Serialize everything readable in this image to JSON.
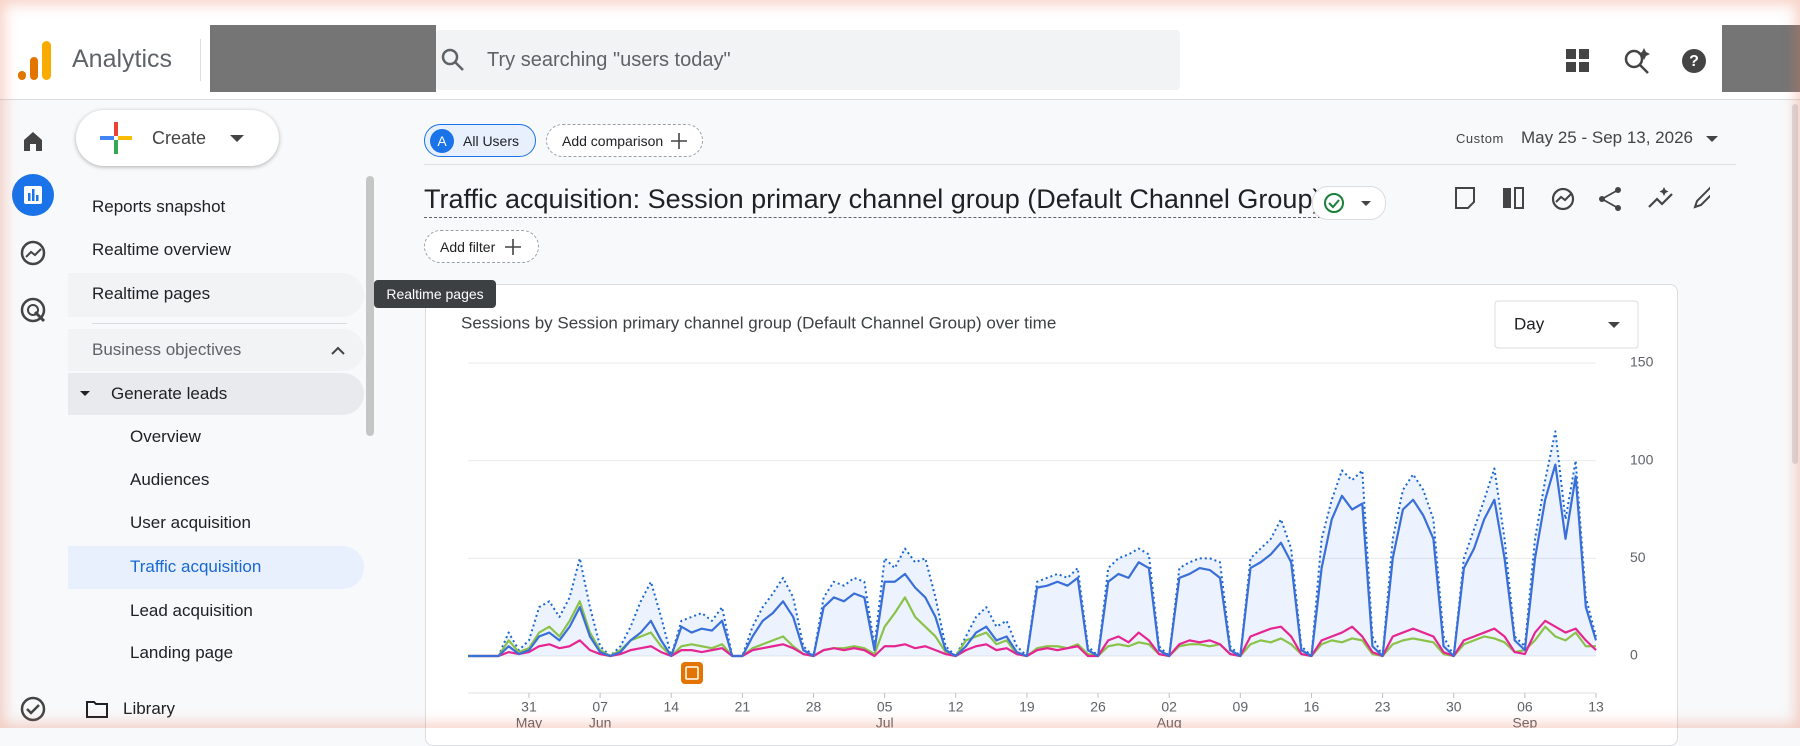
{
  "header": {
    "product": "Analytics",
    "search_placeholder": "Try searching \"users today\""
  },
  "nav": {
    "create": "Create",
    "items": [
      "Reports snapshot",
      "Realtime overview",
      "Realtime pages"
    ],
    "section": "Business objectives",
    "group": "Generate leads",
    "subitems": [
      "Overview",
      "Audiences",
      "User acquisition",
      "Traffic acquisition",
      "Lead acquisition",
      "Landing page"
    ],
    "library": "Library",
    "tooltip": "Realtime pages"
  },
  "toolbar": {
    "segment_letter": "A",
    "segment": "All Users",
    "add_comparison": "Add comparison",
    "date_label": "Custom",
    "date_range": "May 25 - Sep 13, 2026",
    "page_title": "Traffic acquisition: Session primary channel group (Default Channel Group)",
    "add_filter": "Add filter"
  },
  "chart_data": {
    "type": "line",
    "title": "Sessions by Session primary channel group (Default Channel Group) over time",
    "granularity": "Day",
    "ylim": [
      0,
      150
    ],
    "yticks": [
      0,
      50,
      100,
      150
    ],
    "grid": true,
    "xticks": [
      {
        "value": 6,
        "label": "31",
        "sublabel": "May"
      },
      {
        "value": 13,
        "label": "07",
        "sublabel": "Jun"
      },
      {
        "value": 20,
        "label": "14"
      },
      {
        "value": 27,
        "label": "21"
      },
      {
        "value": 34,
        "label": "28"
      },
      {
        "value": 41,
        "label": "05",
        "sublabel": "Jul"
      },
      {
        "value": 48,
        "label": "12"
      },
      {
        "value": 55,
        "label": "19"
      },
      {
        "value": 62,
        "label": "26"
      },
      {
        "value": 69,
        "label": "02",
        "sublabel": "Aug"
      },
      {
        "value": 76,
        "label": "09"
      },
      {
        "value": 83,
        "label": "16"
      },
      {
        "value": 90,
        "label": "23"
      },
      {
        "value": 97,
        "label": "30"
      },
      {
        "value": 104,
        "label": "06",
        "sublabel": "Sep"
      },
      {
        "value": 111,
        "label": "13"
      }
    ],
    "series": [
      {
        "color": "#1967d2",
        "style": "dotted",
        "area": true,
        "values": [
          0,
          0,
          0,
          0,
          12,
          3,
          8,
          25,
          28,
          20,
          30,
          50,
          25,
          5,
          0,
          5,
          15,
          28,
          38,
          20,
          0,
          18,
          20,
          22,
          18,
          25,
          0,
          0,
          15,
          25,
          32,
          40,
          30,
          5,
          0,
          30,
          38,
          36,
          40,
          38,
          5,
          50,
          45,
          55,
          48,
          50,
          30,
          5,
          0,
          10,
          20,
          25,
          15,
          18,
          5,
          0,
          38,
          40,
          42,
          40,
          45,
          5,
          0,
          45,
          50,
          52,
          55,
          52,
          5,
          0,
          45,
          48,
          50,
          50,
          48,
          5,
          0,
          50,
          55,
          60,
          70,
          55,
          5,
          0,
          60,
          80,
          95,
          90,
          95,
          10,
          0,
          60,
          85,
          93,
          85,
          70,
          10,
          0,
          50,
          65,
          80,
          96,
          60,
          10,
          5,
          60,
          90,
          115,
          70,
          100,
          30,
          10
        ]
      },
      {
        "color": "#8bc34a",
        "style": "solid",
        "values": [
          0,
          0,
          0,
          0,
          8,
          2,
          4,
          12,
          15,
          10,
          18,
          28,
          12,
          3,
          0,
          3,
          8,
          10,
          12,
          5,
          0,
          5,
          6,
          5,
          4,
          6,
          0,
          0,
          4,
          6,
          8,
          10,
          5,
          1,
          0,
          3,
          4,
          4,
          5,
          4,
          1,
          15,
          22,
          30,
          20,
          15,
          10,
          2,
          0,
          8,
          10,
          12,
          6,
          8,
          1,
          0,
          4,
          5,
          5,
          4,
          6,
          1,
          0,
          5,
          6,
          5,
          7,
          6,
          1,
          0,
          5,
          6,
          6,
          5,
          6,
          1,
          0,
          6,
          8,
          7,
          9,
          6,
          1,
          0,
          6,
          8,
          7,
          9,
          8,
          1,
          0,
          6,
          8,
          9,
          8,
          7,
          1,
          0,
          6,
          8,
          10,
          9,
          7,
          2,
          3,
          8,
          15,
          10,
          8,
          12,
          5,
          5
        ]
      },
      {
        "color": "#e52592",
        "style": "solid",
        "values": [
          0,
          0,
          0,
          0,
          2,
          1,
          2,
          5,
          6,
          4,
          5,
          8,
          3,
          1,
          0,
          1,
          3,
          4,
          5,
          2,
          0,
          3,
          3,
          2,
          3,
          4,
          0,
          0,
          3,
          4,
          5,
          6,
          4,
          1,
          0,
          3,
          4,
          3,
          4,
          3,
          0,
          5,
          5,
          6,
          4,
          5,
          3,
          1,
          0,
          3,
          5,
          6,
          3,
          4,
          1,
          0,
          3,
          4,
          3,
          4,
          5,
          0,
          0,
          8,
          10,
          7,
          12,
          8,
          1,
          0,
          6,
          8,
          7,
          8,
          6,
          1,
          0,
          10,
          12,
          14,
          15,
          10,
          1,
          0,
          8,
          10,
          12,
          15,
          10,
          2,
          0,
          10,
          12,
          14,
          12,
          10,
          2,
          0,
          8,
          10,
          12,
          14,
          10,
          2,
          1,
          12,
          18,
          15,
          12,
          14,
          8,
          3
        ]
      },
      {
        "color": "#3a6fd8",
        "style": "solid",
        "values": [
          0,
          0,
          0,
          0,
          5,
          1,
          3,
          10,
          12,
          8,
          15,
          25,
          10,
          2,
          0,
          2,
          8,
          12,
          18,
          8,
          0,
          15,
          12,
          14,
          13,
          18,
          0,
          0,
          10,
          18,
          22,
          28,
          20,
          3,
          0,
          25,
          30,
          28,
          32,
          30,
          3,
          38,
          38,
          42,
          35,
          30,
          20,
          3,
          0,
          5,
          12,
          15,
          8,
          10,
          2,
          0,
          35,
          36,
          38,
          36,
          40,
          3,
          0,
          38,
          42,
          40,
          48,
          45,
          3,
          0,
          40,
          42,
          45,
          44,
          40,
          3,
          0,
          45,
          48,
          52,
          58,
          48,
          3,
          0,
          45,
          70,
          82,
          75,
          78,
          5,
          0,
          50,
          75,
          80,
          72,
          60,
          5,
          0,
          45,
          55,
          70,
          80,
          50,
          8,
          3,
          50,
          80,
          98,
          60,
          92,
          25,
          8
        ]
      }
    ]
  }
}
